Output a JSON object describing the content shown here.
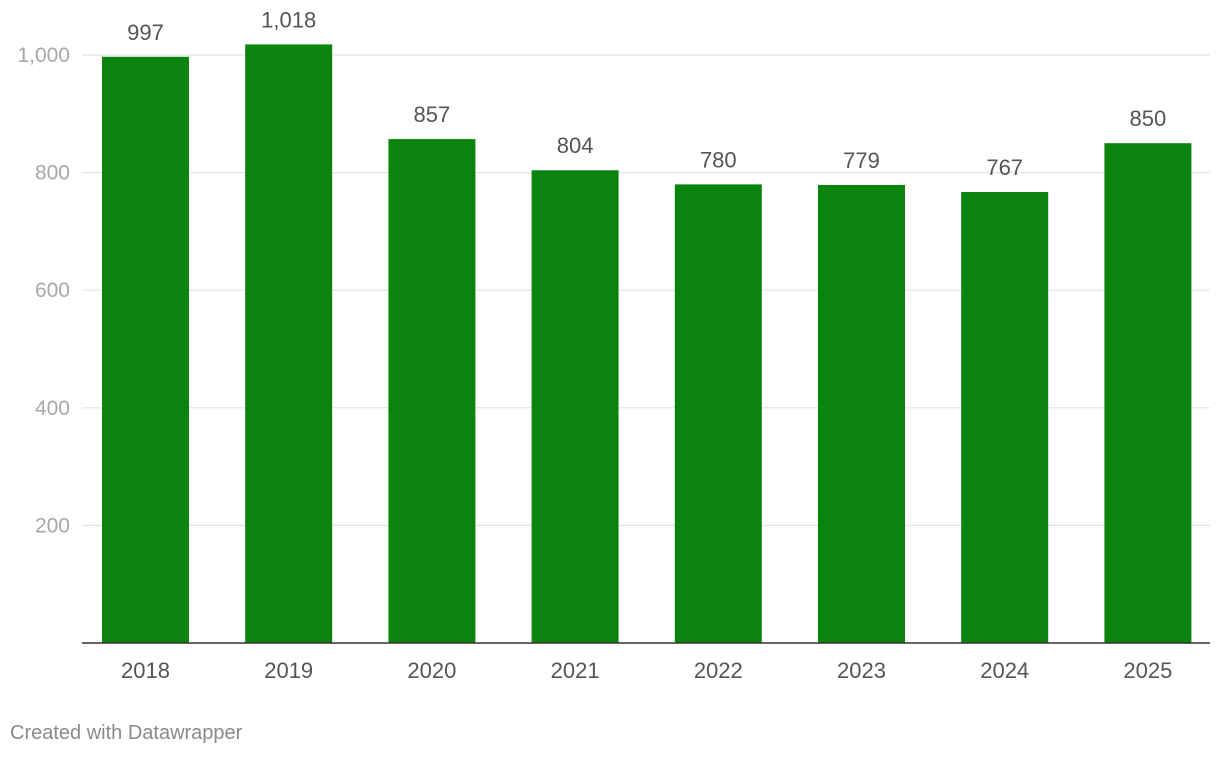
{
  "chart_data": {
    "type": "bar",
    "categories": [
      "2018",
      "2019",
      "2020",
      "2021",
      "2022",
      "2023",
      "2024",
      "2025"
    ],
    "values": [
      997,
      1018,
      857,
      804,
      780,
      779,
      767,
      850
    ],
    "value_labels": [
      "997",
      "1,018",
      "857",
      "804",
      "780",
      "779",
      "767",
      "850"
    ],
    "y_ticks": [
      200,
      400,
      600,
      800,
      1000
    ],
    "y_tick_labels": [
      "200",
      "400",
      "600",
      "800",
      "1,000"
    ],
    "ylim": [
      0,
      1000
    ],
    "grid": true,
    "bar_color": "#0a840f",
    "title": "",
    "xlabel": "",
    "ylabel": ""
  },
  "footer": {
    "credit": "Created with Datawrapper"
  }
}
